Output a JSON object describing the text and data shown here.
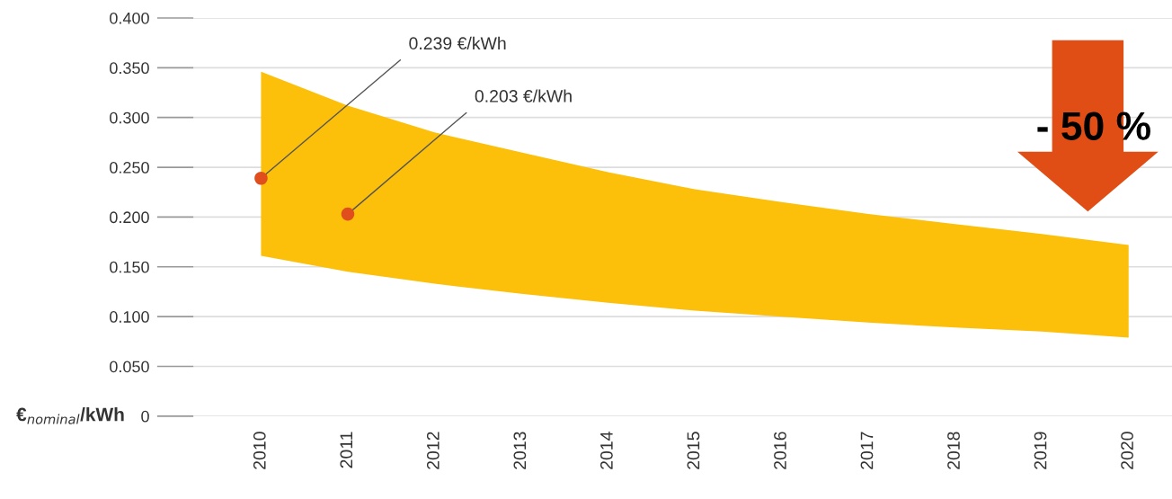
{
  "chart_data": {
    "type": "area",
    "ylabel": "€$_{nominal}$/kWh",
    "categories": [
      "2010",
      "2011",
      "2012",
      "2013",
      "2014",
      "2015",
      "2016",
      "2017",
      "2018",
      "2019",
      "2020"
    ],
    "series": [
      {
        "color": "#fcbf0a",
        "values": [
          null,
          null,
          null,
          null,
          null,
          null,
          null,
          null,
          null,
          null,
          null
        ],
        "lower": [
          0.161,
          0.145,
          0.133,
          0.123,
          0.114,
          0.106,
          0.1,
          0.094,
          0.089,
          0.085,
          0.079
        ],
        "upper": [
          0.346,
          0.312,
          0.285,
          0.265,
          0.245,
          0.228,
          0.215,
          0.203,
          0.193,
          0.183,
          0.172
        ]
      },
      {
        "type": "scatter",
        "color": "#e04e1e",
        "marker": "circle",
        "values": [
          0.239,
          0.203,
          null,
          null,
          null,
          null,
          null,
          null,
          null,
          null,
          null
        ]
      }
    ],
    "ylim": [
      0,
      0.4
    ],
    "yticks": [
      0,
      {
        "value": 0.05,
        "label": "0.050"
      },
      {
        "value": 0.1,
        "label": "0.100"
      },
      {
        "value": 0.15,
        "label": "0.150"
      },
      {
        "value": 0.2,
        "label": "0.200"
      },
      {
        "value": 0.25,
        "label": "0.250"
      },
      {
        "value": 0.3,
        "label": "0.300"
      },
      {
        "value": 0.35,
        "label": "0.350"
      },
      {
        "value": 0.4,
        "label": "0.400"
      }
    ],
    "grid": "y",
    "annotations": [
      {
        "text": "0.239 €/kWh",
        "x": "2010",
        "y": 0.239
      },
      {
        "text": "0.203 €/kWh",
        "x": "2011",
        "y": 0.203
      },
      "- 50 %"
    ]
  }
}
